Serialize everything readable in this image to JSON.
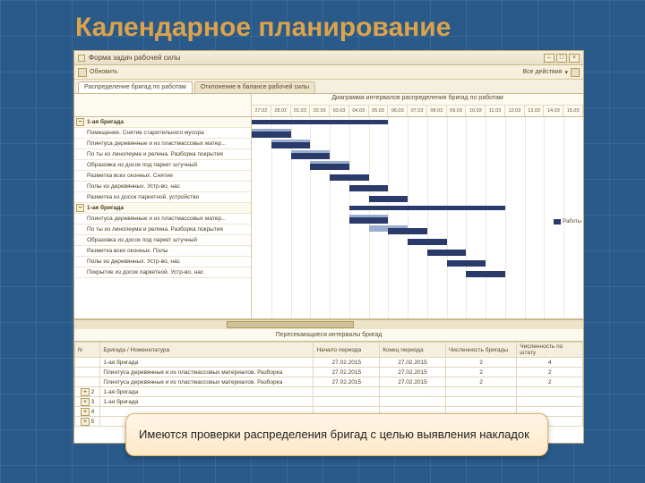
{
  "slide": {
    "title": "Календарное планирование"
  },
  "window": {
    "title": "Форма задач рабочей силы"
  },
  "toolbar": {
    "refresh": "Обновить",
    "actions": "Все действия",
    "actions_arrow": "▾"
  },
  "tabs": {
    "t1": "Распределение бригад по работам",
    "t2": "Отклонение в балансе рабочей силы"
  },
  "gantt": {
    "title": "Диаграмма интервалов распределения бригад по работам",
    "dates": [
      "27.02",
      "28.02",
      "01.03",
      "02.03",
      "03.03",
      "04.03",
      "05.03",
      "06.03",
      "07.03",
      "08.03",
      "09.03",
      "10.03",
      "11.03",
      "12.03",
      "13.03",
      "14.03",
      "15.03"
    ],
    "rows": [
      {
        "label": "1-ая бригада",
        "group": true,
        "bars": [
          {
            "c": "group",
            "s": 0,
            "e": 7
          }
        ]
      },
      {
        "label": "Помещение. Снятие старительного мусора",
        "bars": [
          {
            "c": "light",
            "s": 0,
            "e": 2
          },
          {
            "c": "dark",
            "s": 0,
            "e": 2
          }
        ]
      },
      {
        "label": "Плинтуса деревянные и из пластмассовых матер...",
        "bars": [
          {
            "c": "light",
            "s": 1,
            "e": 3
          },
          {
            "c": "dark",
            "s": 1,
            "e": 3
          }
        ]
      },
      {
        "label": "По ты из линолеума и релина. Разборка покрытия",
        "bars": [
          {
            "c": "light",
            "s": 2,
            "e": 4
          },
          {
            "c": "dark",
            "s": 2,
            "e": 4
          }
        ]
      },
      {
        "label": "Образовка из досок под паркет штучный",
        "bars": [
          {
            "c": "light",
            "s": 3,
            "e": 5
          },
          {
            "c": "dark",
            "s": 3,
            "e": 5
          }
        ]
      },
      {
        "label": "Разметка всех оконных. Снятие",
        "bars": [
          {
            "c": "dark",
            "s": 4,
            "e": 6
          }
        ]
      },
      {
        "label": "Полы из деревянных. Устр-во, нас",
        "bars": [
          {
            "c": "dark",
            "s": 5,
            "e": 7
          }
        ]
      },
      {
        "label": "Разметка из досок паркетной, устройство",
        "bars": [
          {
            "c": "dark",
            "s": 6,
            "e": 8
          }
        ]
      },
      {
        "label": "1-ая бригада",
        "group": true,
        "bars": [
          {
            "c": "group",
            "s": 5,
            "e": 13
          }
        ]
      },
      {
        "label": "Плинтуса деревянные и из пластмассовых матер...",
        "bars": [
          {
            "c": "light",
            "s": 5,
            "e": 7
          },
          {
            "c": "dark",
            "s": 5,
            "e": 7
          }
        ]
      },
      {
        "label": "По ты из линолеума и релина. Разборка покрытия",
        "bars": [
          {
            "c": "light",
            "s": 6,
            "e": 8
          },
          {
            "c": "dark",
            "s": 7,
            "e": 9
          }
        ]
      },
      {
        "label": "Образовка из досок под паркет штучный",
        "bars": [
          {
            "c": "dark",
            "s": 8,
            "e": 10
          }
        ]
      },
      {
        "label": "Разметка всех оконных. Полы",
        "bars": [
          {
            "c": "dark",
            "s": 9,
            "e": 11
          }
        ]
      },
      {
        "label": "Полы из деревянных. Устр-во, нас",
        "bars": [
          {
            "c": "dark",
            "s": 10,
            "e": 12
          }
        ]
      },
      {
        "label": "Покрытие из досок паркетной. Устр-во, нас",
        "bars": [
          {
            "c": "dark",
            "s": 11,
            "e": 13
          }
        ]
      }
    ],
    "legend": {
      "label": "Работы",
      "color": "#2a3a6a"
    }
  },
  "overlap_table": {
    "title": "Пересекающиеся интервалы бригад",
    "cols": [
      "N",
      "Бригада / Номенклатура",
      "Начало периода",
      "Конец периода",
      "Численность бригады",
      "Численность по штату"
    ],
    "rows": [
      {
        "n": "",
        "name": "1-ая бригада",
        "start": "27.02.2015",
        "end": "27.02.2015",
        "b": "2",
        "p": "4"
      },
      {
        "n": "",
        "name": "Плинтуса деревянные и из пластмассовых материалов. Разборка",
        "start": "27.02.2015",
        "end": "27.02.2015",
        "b": "2",
        "p": "2"
      },
      {
        "n": "",
        "name": "Плинтуса деревянные и из пластмассовых материалов. Разборка",
        "start": "27.02.2015",
        "end": "27.02.2015",
        "b": "2",
        "p": "2"
      },
      {
        "n": "2",
        "name": "1-ая бригада",
        "start": "",
        "end": "",
        "b": "",
        "p": ""
      },
      {
        "n": "3",
        "name": "1-ая бригада",
        "start": "",
        "end": "",
        "b": "",
        "p": ""
      },
      {
        "n": "4",
        "name": "",
        "start": "",
        "end": "",
        "b": "",
        "p": ""
      },
      {
        "n": "5",
        "name": "",
        "start": "",
        "end": "",
        "b": "",
        "p": ""
      }
    ]
  },
  "callout": {
    "text": "Имеются проверки распределения бригад с целью выявления накладок"
  },
  "colors": {
    "bar_light": "#9aaed0",
    "bar_dark": "#2a3a6a"
  }
}
